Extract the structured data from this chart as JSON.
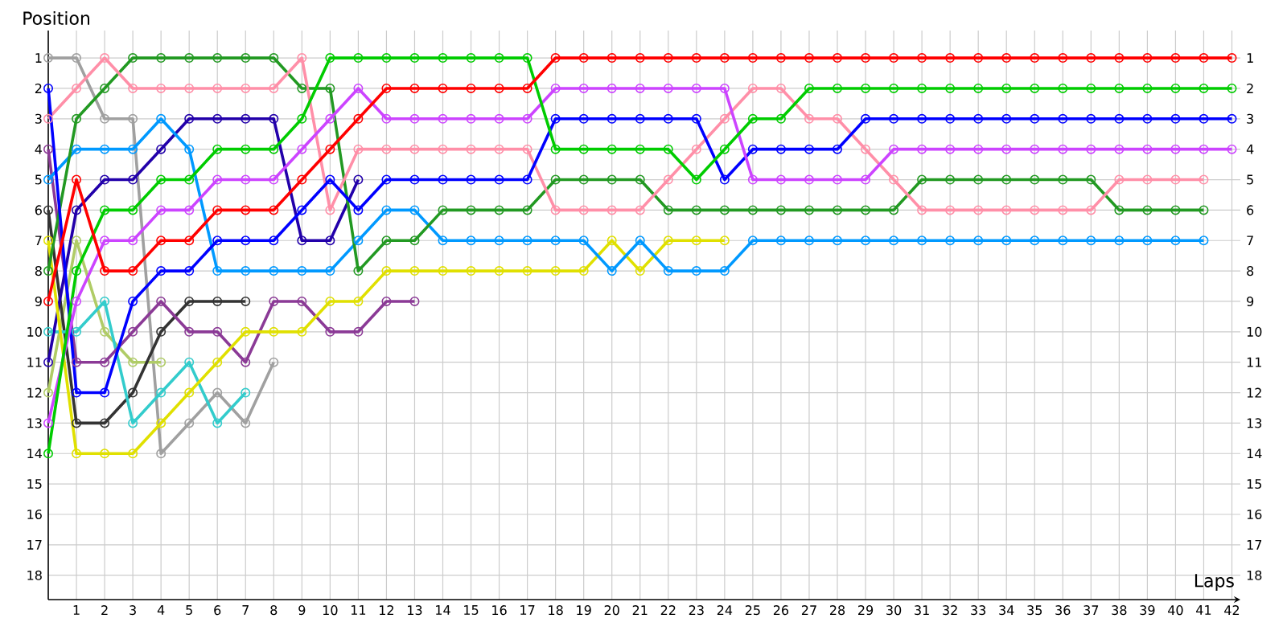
{
  "chart_data": {
    "type": "line",
    "xlabel": "Laps",
    "ylabel": "Position",
    "x": [
      0,
      1,
      2,
      3,
      4,
      5,
      6,
      7,
      8,
      9,
      10,
      11,
      12,
      13,
      14,
      15,
      16,
      17,
      18,
      19,
      20,
      21,
      22,
      23,
      24,
      25,
      26,
      27,
      28,
      29,
      30,
      31,
      32,
      33,
      34,
      35,
      36,
      37,
      38,
      39,
      40,
      41,
      42
    ],
    "xlim": [
      0,
      42.3
    ],
    "xticks": [
      1,
      2,
      3,
      4,
      5,
      6,
      7,
      8,
      9,
      10,
      11,
      12,
      13,
      14,
      15,
      16,
      17,
      18,
      19,
      20,
      21,
      22,
      23,
      24,
      25,
      26,
      27,
      28,
      29,
      30,
      31,
      32,
      33,
      34,
      35,
      36,
      37,
      38,
      39,
      40,
      41,
      42
    ],
    "ylim": [
      18.8,
      0.1
    ],
    "yticks": [
      1,
      2,
      3,
      4,
      5,
      6,
      7,
      8,
      9,
      10,
      11,
      12,
      13,
      14,
      15,
      16,
      17,
      18
    ],
    "y2lim": [
      18.8,
      0.1
    ],
    "y2ticks": [
      1,
      2,
      3,
      4,
      5,
      6,
      7,
      8,
      9,
      10,
      11,
      12,
      13,
      14,
      15,
      16,
      17,
      18
    ],
    "grid": true,
    "marker": "circle",
    "line_style": "solid",
    "series": [
      {
        "color": "#a0a0a0",
        "values": [
          1,
          1,
          3,
          3,
          14,
          13,
          12,
          13,
          11,
          null,
          null,
          null,
          null,
          null,
          null,
          null,
          null,
          null,
          null,
          null,
          null,
          null,
          null,
          null,
          null,
          null,
          null,
          null,
          null,
          null,
          null,
          null,
          null,
          null,
          null,
          null,
          null,
          null,
          null,
          null,
          null,
          null,
          null
        ]
      },
      {
        "color": "#b0cc66",
        "values": [
          12,
          7,
          10,
          11,
          11,
          null,
          null,
          null,
          null,
          null,
          null,
          null,
          null,
          null,
          null,
          null,
          null,
          null,
          null,
          null,
          null,
          null,
          null,
          null,
          null,
          null,
          null,
          null,
          null,
          null,
          null,
          null,
          null,
          null,
          null,
          null,
          null,
          null,
          null,
          null,
          null,
          null,
          null
        ]
      },
      {
        "color": "#333333",
        "values": [
          6,
          13,
          13,
          12,
          10,
          9,
          9,
          9,
          null,
          null,
          null,
          null,
          null,
          null,
          null,
          null,
          null,
          null,
          null,
          null,
          null,
          null,
          null,
          null,
          null,
          null,
          null,
          null,
          null,
          null,
          null,
          null,
          null,
          null,
          null,
          null,
          null,
          null,
          null,
          null,
          null,
          null,
          null
        ]
      },
      {
        "color": "#33cccc",
        "values": [
          10,
          10,
          9,
          13,
          12,
          11,
          13,
          12,
          null,
          null,
          null,
          null,
          null,
          null,
          null,
          null,
          null,
          null,
          null,
          null,
          null,
          null,
          null,
          null,
          null,
          null,
          null,
          null,
          null,
          null,
          null,
          null,
          null,
          null,
          null,
          null,
          null,
          null,
          null,
          null,
          null,
          null,
          null
        ]
      },
      {
        "color": "#8b3a96",
        "values": [
          4,
          11,
          11,
          10,
          9,
          10,
          10,
          11,
          9,
          9,
          10,
          10,
          9,
          9,
          null,
          null,
          null,
          null,
          null,
          null,
          null,
          null,
          null,
          null,
          null,
          null,
          null,
          null,
          null,
          null,
          null,
          null,
          null,
          null,
          null,
          null,
          null,
          null,
          null,
          null,
          null,
          null,
          null
        ]
      },
      {
        "color": "#2200aa",
        "values": [
          11,
          6,
          5,
          5,
          4,
          3,
          3,
          3,
          3,
          7,
          7,
          5,
          null,
          null,
          null,
          null,
          null,
          null,
          null,
          null,
          null,
          null,
          null,
          null,
          null,
          null,
          null,
          null,
          null,
          null,
          null,
          null,
          null,
          null,
          null,
          null,
          null,
          null,
          null,
          null,
          null,
          null,
          null
        ]
      },
      {
        "color": "#e0e000",
        "values": [
          7,
          14,
          14,
          14,
          13,
          12,
          11,
          10,
          10,
          10,
          9,
          9,
          8,
          8,
          8,
          8,
          8,
          8,
          8,
          8,
          7,
          8,
          7,
          7,
          7,
          null,
          null,
          null,
          null,
          null,
          null,
          null,
          null,
          null,
          null,
          null,
          null,
          null,
          null,
          null,
          null,
          null,
          null
        ]
      },
      {
        "color": "#0099ff",
        "values": [
          5,
          4,
          4,
          4,
          3,
          4,
          8,
          8,
          8,
          8,
          8,
          7,
          6,
          6,
          7,
          7,
          7,
          7,
          7,
          7,
          8,
          7,
          8,
          8,
          8,
          7,
          7,
          7,
          7,
          7,
          7,
          7,
          7,
          7,
          7,
          7,
          7,
          7,
          7,
          7,
          7,
          7,
          null
        ]
      },
      {
        "color": "#229922",
        "values": [
          8,
          3,
          2,
          1,
          1,
          1,
          1,
          1,
          1,
          2,
          2,
          8,
          7,
          7,
          6,
          6,
          6,
          6,
          5,
          5,
          5,
          5,
          6,
          6,
          6,
          6,
          6,
          6,
          6,
          6,
          6,
          5,
          5,
          5,
          5,
          5,
          5,
          5,
          6,
          6,
          6,
          6,
          null
        ]
      },
      {
        "color": "#ff8fa8",
        "values": [
          3,
          2,
          1,
          2,
          2,
          2,
          2,
          2,
          2,
          1,
          6,
          4,
          4,
          4,
          4,
          4,
          4,
          4,
          6,
          6,
          6,
          6,
          5,
          4,
          3,
          2,
          2,
          3,
          3,
          4,
          5,
          6,
          6,
          6,
          6,
          6,
          6,
          6,
          5,
          5,
          5,
          5,
          null
        ]
      },
      {
        "color": "#0000ff",
        "values": [
          2,
          12,
          12,
          9,
          8,
          8,
          7,
          7,
          7,
          6,
          5,
          6,
          5,
          5,
          5,
          5,
          5,
          5,
          3,
          3,
          3,
          3,
          3,
          3,
          5,
          4,
          4,
          4,
          4,
          3,
          3,
          3,
          3,
          3,
          3,
          3,
          3,
          3,
          3,
          3,
          3,
          3,
          3
        ]
      },
      {
        "color": "#cc44ff",
        "values": [
          13,
          9,
          7,
          7,
          6,
          6,
          5,
          5,
          5,
          4,
          3,
          2,
          3,
          3,
          3,
          3,
          3,
          3,
          2,
          2,
          2,
          2,
          2,
          2,
          2,
          5,
          5,
          5,
          5,
          5,
          4,
          4,
          4,
          4,
          4,
          4,
          4,
          4,
          4,
          4,
          4,
          4,
          4
        ]
      },
      {
        "color": "#00cc00",
        "values": [
          14,
          8,
          6,
          6,
          5,
          5,
          4,
          4,
          4,
          3,
          1,
          1,
          1,
          1,
          1,
          1,
          1,
          1,
          4,
          4,
          4,
          4,
          4,
          5,
          4,
          3,
          3,
          2,
          2,
          2,
          2,
          2,
          2,
          2,
          2,
          2,
          2,
          2,
          2,
          2,
          2,
          2,
          2
        ]
      },
      {
        "color": "#ff0000",
        "values": [
          9,
          5,
          8,
          8,
          7,
          7,
          6,
          6,
          6,
          5,
          4,
          3,
          2,
          2,
          2,
          2,
          2,
          2,
          1,
          1,
          1,
          1,
          1,
          1,
          1,
          1,
          1,
          1,
          1,
          1,
          1,
          1,
          1,
          1,
          1,
          1,
          1,
          1,
          1,
          1,
          1,
          1,
          1
        ]
      }
    ]
  }
}
